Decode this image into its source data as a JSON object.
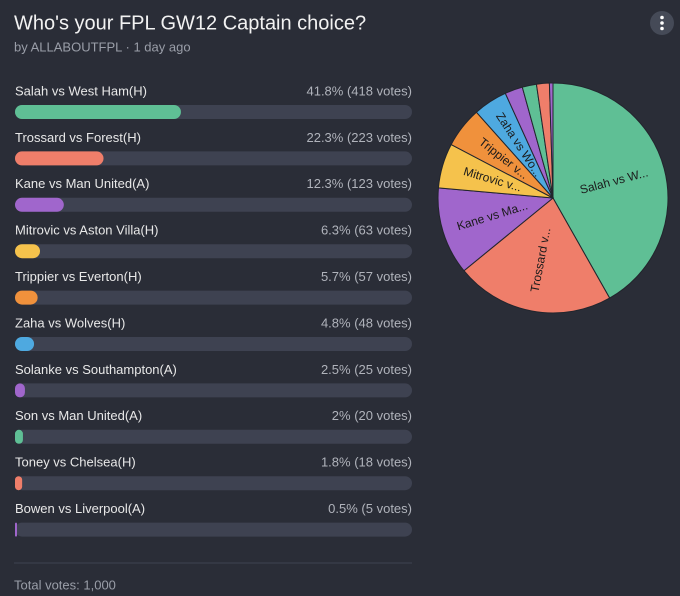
{
  "header": {
    "title": "Who's your FPL GW12 Captain choice?",
    "byline": "by ALLABOUTFPL · 1 day ago"
  },
  "poll": {
    "options": [
      {
        "label": "Salah vs West Ham(H)",
        "result": "41.8% (418 votes)",
        "percent": 41.8,
        "votes": 418,
        "color": "#5fbf95",
        "pie_label": "Salah vs W..."
      },
      {
        "label": "Trossard vs Forest(H)",
        "result": "22.3% (223 votes)",
        "percent": 22.3,
        "votes": 223,
        "color": "#ef7e6a",
        "pie_label": "Trossard v..."
      },
      {
        "label": "Kane vs Man United(A)",
        "result": "12.3% (123 votes)",
        "percent": 12.3,
        "votes": 123,
        "color": "#a066cc",
        "pie_label": "Kane vs Ma..."
      },
      {
        "label": "Mitrovic vs Aston Villa(H)",
        "result": "6.3% (63 votes)",
        "percent": 6.3,
        "votes": 63,
        "color": "#f5c24c",
        "pie_label": "Mitrovic v..."
      },
      {
        "label": "Trippier vs Everton(H)",
        "result": "5.7% (57 votes)",
        "percent": 5.7,
        "votes": 57,
        "color": "#f0913c",
        "pie_label": "Trippier v..."
      },
      {
        "label": "Zaha vs Wolves(H)",
        "result": "4.8% (48 votes)",
        "percent": 4.8,
        "votes": 48,
        "color": "#4ea9e0",
        "pie_label": "Zaha vs Wo..."
      },
      {
        "label": "Solanke vs Southampton(A)",
        "result": "2.5% (25 votes)",
        "percent": 2.5,
        "votes": 25,
        "color": "#a066cc",
        "pie_label": null
      },
      {
        "label": "Son vs Man United(A)",
        "result": "2% (20 votes)",
        "percent": 2,
        "votes": 20,
        "color": "#5fbf95",
        "pie_label": null
      },
      {
        "label": "Toney vs Chelsea(H)",
        "result": "1.8% (18 votes)",
        "percent": 1.8,
        "votes": 18,
        "color": "#ef7e6a",
        "pie_label": null
      },
      {
        "label": "Bowen vs Liverpool(A)",
        "result": "0.5% (5 votes)",
        "percent": 0.5,
        "votes": 5,
        "color": "#a066cc",
        "pie_label": null
      }
    ],
    "total": "Total votes: 1,000"
  }
}
